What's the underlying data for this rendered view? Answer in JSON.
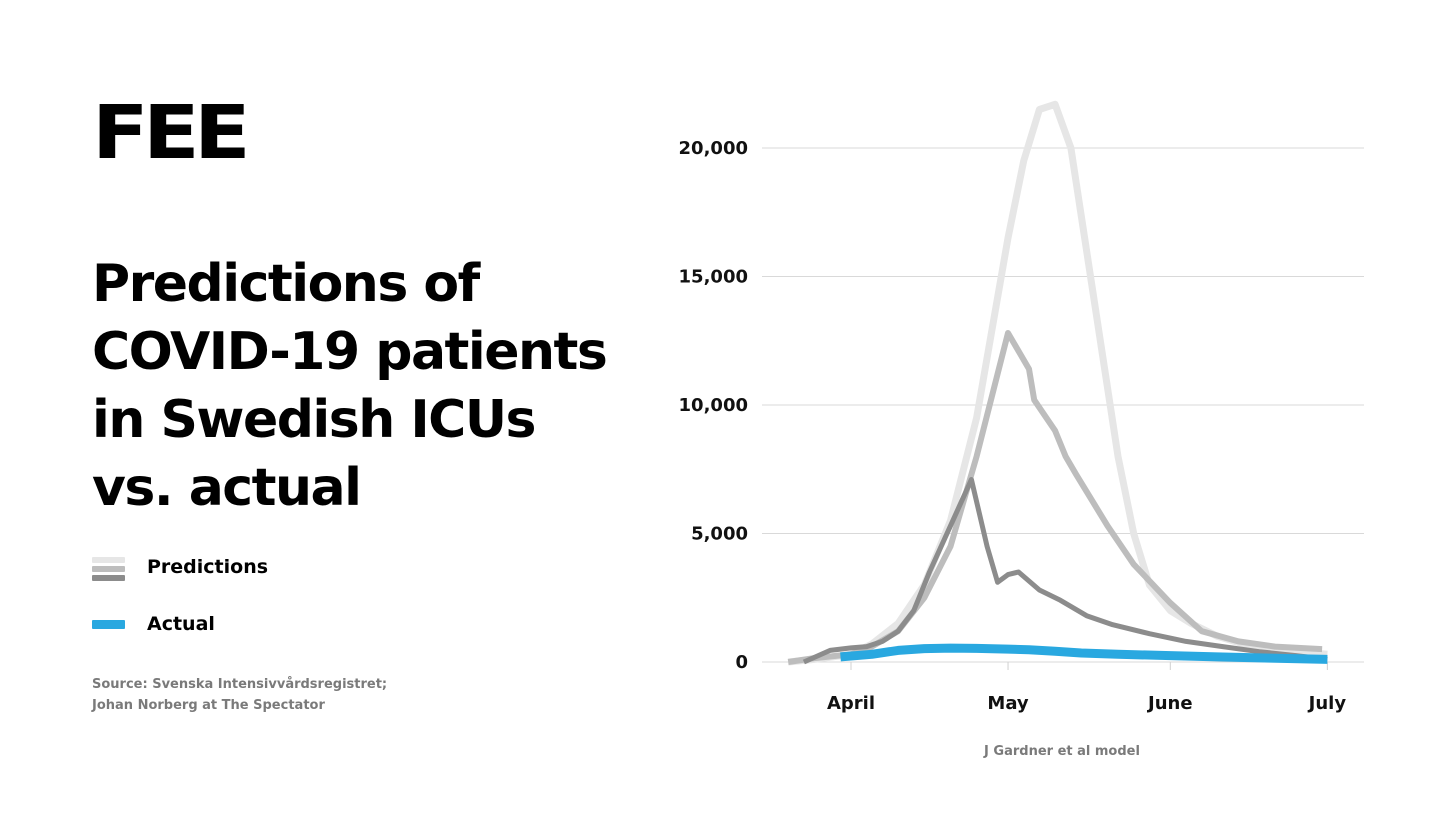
{
  "brand": {
    "logo_text": "FEE"
  },
  "headline": {
    "lines": [
      "Predictions of",
      "COVID-19 patients",
      "in Swedish ICUs",
      "vs. actual"
    ]
  },
  "legend": {
    "predictions_label": "Predictions",
    "actual_label": "Actual",
    "prediction_swatch_colors": [
      "#e6e6e6",
      "#bdbdbd",
      "#8c8c8c"
    ],
    "actual_swatch_color": "#29a8e0"
  },
  "source": {
    "lines": [
      "Source: Svenska Intensivvårdsregistret;",
      "Johan Norberg at The Spectator"
    ]
  },
  "chart_data": {
    "type": "line",
    "title": "",
    "xlabel": "",
    "ylabel": "",
    "annotation": "J Gardner et al model",
    "x_ticks": [
      "April",
      "May",
      "June",
      "July"
    ],
    "y_ticks": [
      "0",
      "5,000",
      "10,000",
      "15,000",
      "20,000"
    ],
    "y_tick_values": [
      0,
      5000,
      10000,
      15000,
      20000
    ],
    "ylim": [
      0,
      22000
    ],
    "xlim": [
      "2020-03-15",
      "2020-07-08"
    ],
    "grid": true,
    "series": [
      {
        "color": "#e6e6e6",
        "x": [
          "2020-03-20",
          "2020-03-25",
          "2020-04-01",
          "2020-04-05",
          "2020-04-10",
          "2020-04-15",
          "2020-04-20",
          "2020-04-25",
          "2020-04-28",
          "2020-05-01",
          "2020-05-04",
          "2020-05-07",
          "2020-05-10",
          "2020-05-13",
          "2020-05-16",
          "2020-05-19",
          "2020-05-22",
          "2020-05-25",
          "2020-05-28",
          "2020-06-01",
          "2020-06-05",
          "2020-06-10",
          "2020-06-15",
          "2020-06-20",
          "2020-06-25",
          "2020-07-01"
        ],
        "values": [
          0,
          100,
          300,
          700,
          1500,
          3000,
          5500,
          9500,
          13000,
          16500,
          19500,
          21500,
          21700,
          20000,
          16000,
          12000,
          8000,
          5000,
          3000,
          2000,
          1500,
          1000,
          700,
          500,
          400,
          300
        ]
      },
      {
        "color": "#bdbdbd",
        "x": [
          "2020-03-20",
          "2020-03-25",
          "2020-04-01",
          "2020-04-05",
          "2020-04-10",
          "2020-04-15",
          "2020-04-20",
          "2020-04-25",
          "2020-05-01",
          "2020-05-05",
          "2020-05-06",
          "2020-05-10",
          "2020-05-12",
          "2020-05-14",
          "2020-05-17",
          "2020-05-20",
          "2020-05-25",
          "2020-06-01",
          "2020-06-07",
          "2020-06-14",
          "2020-06-21",
          "2020-06-30"
        ],
        "values": [
          0,
          150,
          300,
          600,
          1200,
          2500,
          4500,
          8000,
          12800,
          11400,
          10200,
          9000,
          8000,
          7300,
          6300,
          5300,
          3800,
          2300,
          1200,
          800,
          600,
          500
        ]
      },
      {
        "color": "#8c8c8c",
        "x": [
          "2020-03-23",
          "2020-03-28",
          "2020-04-01",
          "2020-04-04",
          "2020-04-07",
          "2020-04-10",
          "2020-04-13",
          "2020-04-16",
          "2020-04-20",
          "2020-04-24",
          "2020-04-27",
          "2020-04-29",
          "2020-05-01",
          "2020-05-03",
          "2020-05-07",
          "2020-05-11",
          "2020-05-16",
          "2020-05-21",
          "2020-05-28",
          "2020-06-04",
          "2020-06-11",
          "2020-06-18",
          "2020-06-25",
          "2020-07-01"
        ],
        "values": [
          0,
          450,
          550,
          600,
          800,
          1200,
          2000,
          3500,
          5300,
          7100,
          4500,
          3100,
          3400,
          3500,
          2800,
          2400,
          1800,
          1450,
          1100,
          800,
          600,
          400,
          250,
          100
        ]
      },
      {
        "color": "#29a8e0",
        "x": [
          "2020-03-30",
          "2020-04-05",
          "2020-04-10",
          "2020-04-15",
          "2020-04-20",
          "2020-04-25",
          "2020-05-01",
          "2020-05-05",
          "2020-05-10",
          "2020-05-15",
          "2020-05-22",
          "2020-06-01",
          "2020-06-10",
          "2020-06-20",
          "2020-07-01"
        ],
        "values": [
          200,
          300,
          450,
          520,
          540,
          530,
          500,
          480,
          420,
          350,
          300,
          250,
          200,
          150,
          100
        ]
      }
    ]
  }
}
